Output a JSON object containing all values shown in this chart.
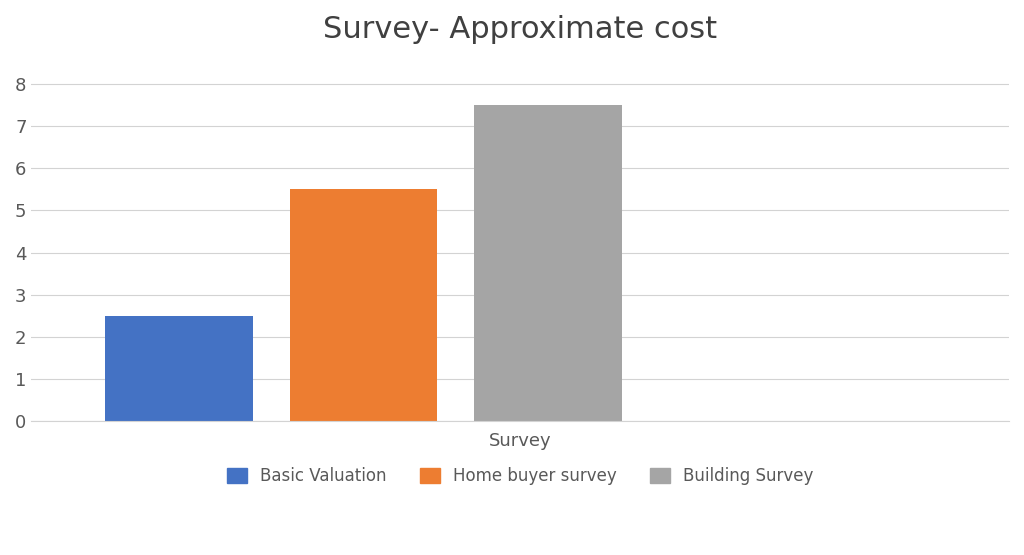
{
  "title": "Survey- Approximate cost",
  "categories": [
    "Basic Valuation",
    "Home buyer survey",
    "Building Survey"
  ],
  "values": [
    2.5,
    5.5,
    7.5
  ],
  "bar_colors": [
    "#4472C4",
    "#ED7D31",
    "#A5A5A5"
  ],
  "xlabel": "Survey",
  "ylabel": "",
  "ylim": [
    0,
    8.5
  ],
  "yticks": [
    0,
    1,
    2,
    3,
    4,
    5,
    6,
    7,
    8
  ],
  "title_fontsize": 22,
  "axis_label_fontsize": 13,
  "tick_fontsize": 13,
  "legend_fontsize": 12,
  "background_color": "#FFFFFF",
  "grid_color": "#D3D3D3",
  "bar_width": 0.8,
  "title_color": "#404040",
  "tick_color": "#595959",
  "label_color": "#595959"
}
